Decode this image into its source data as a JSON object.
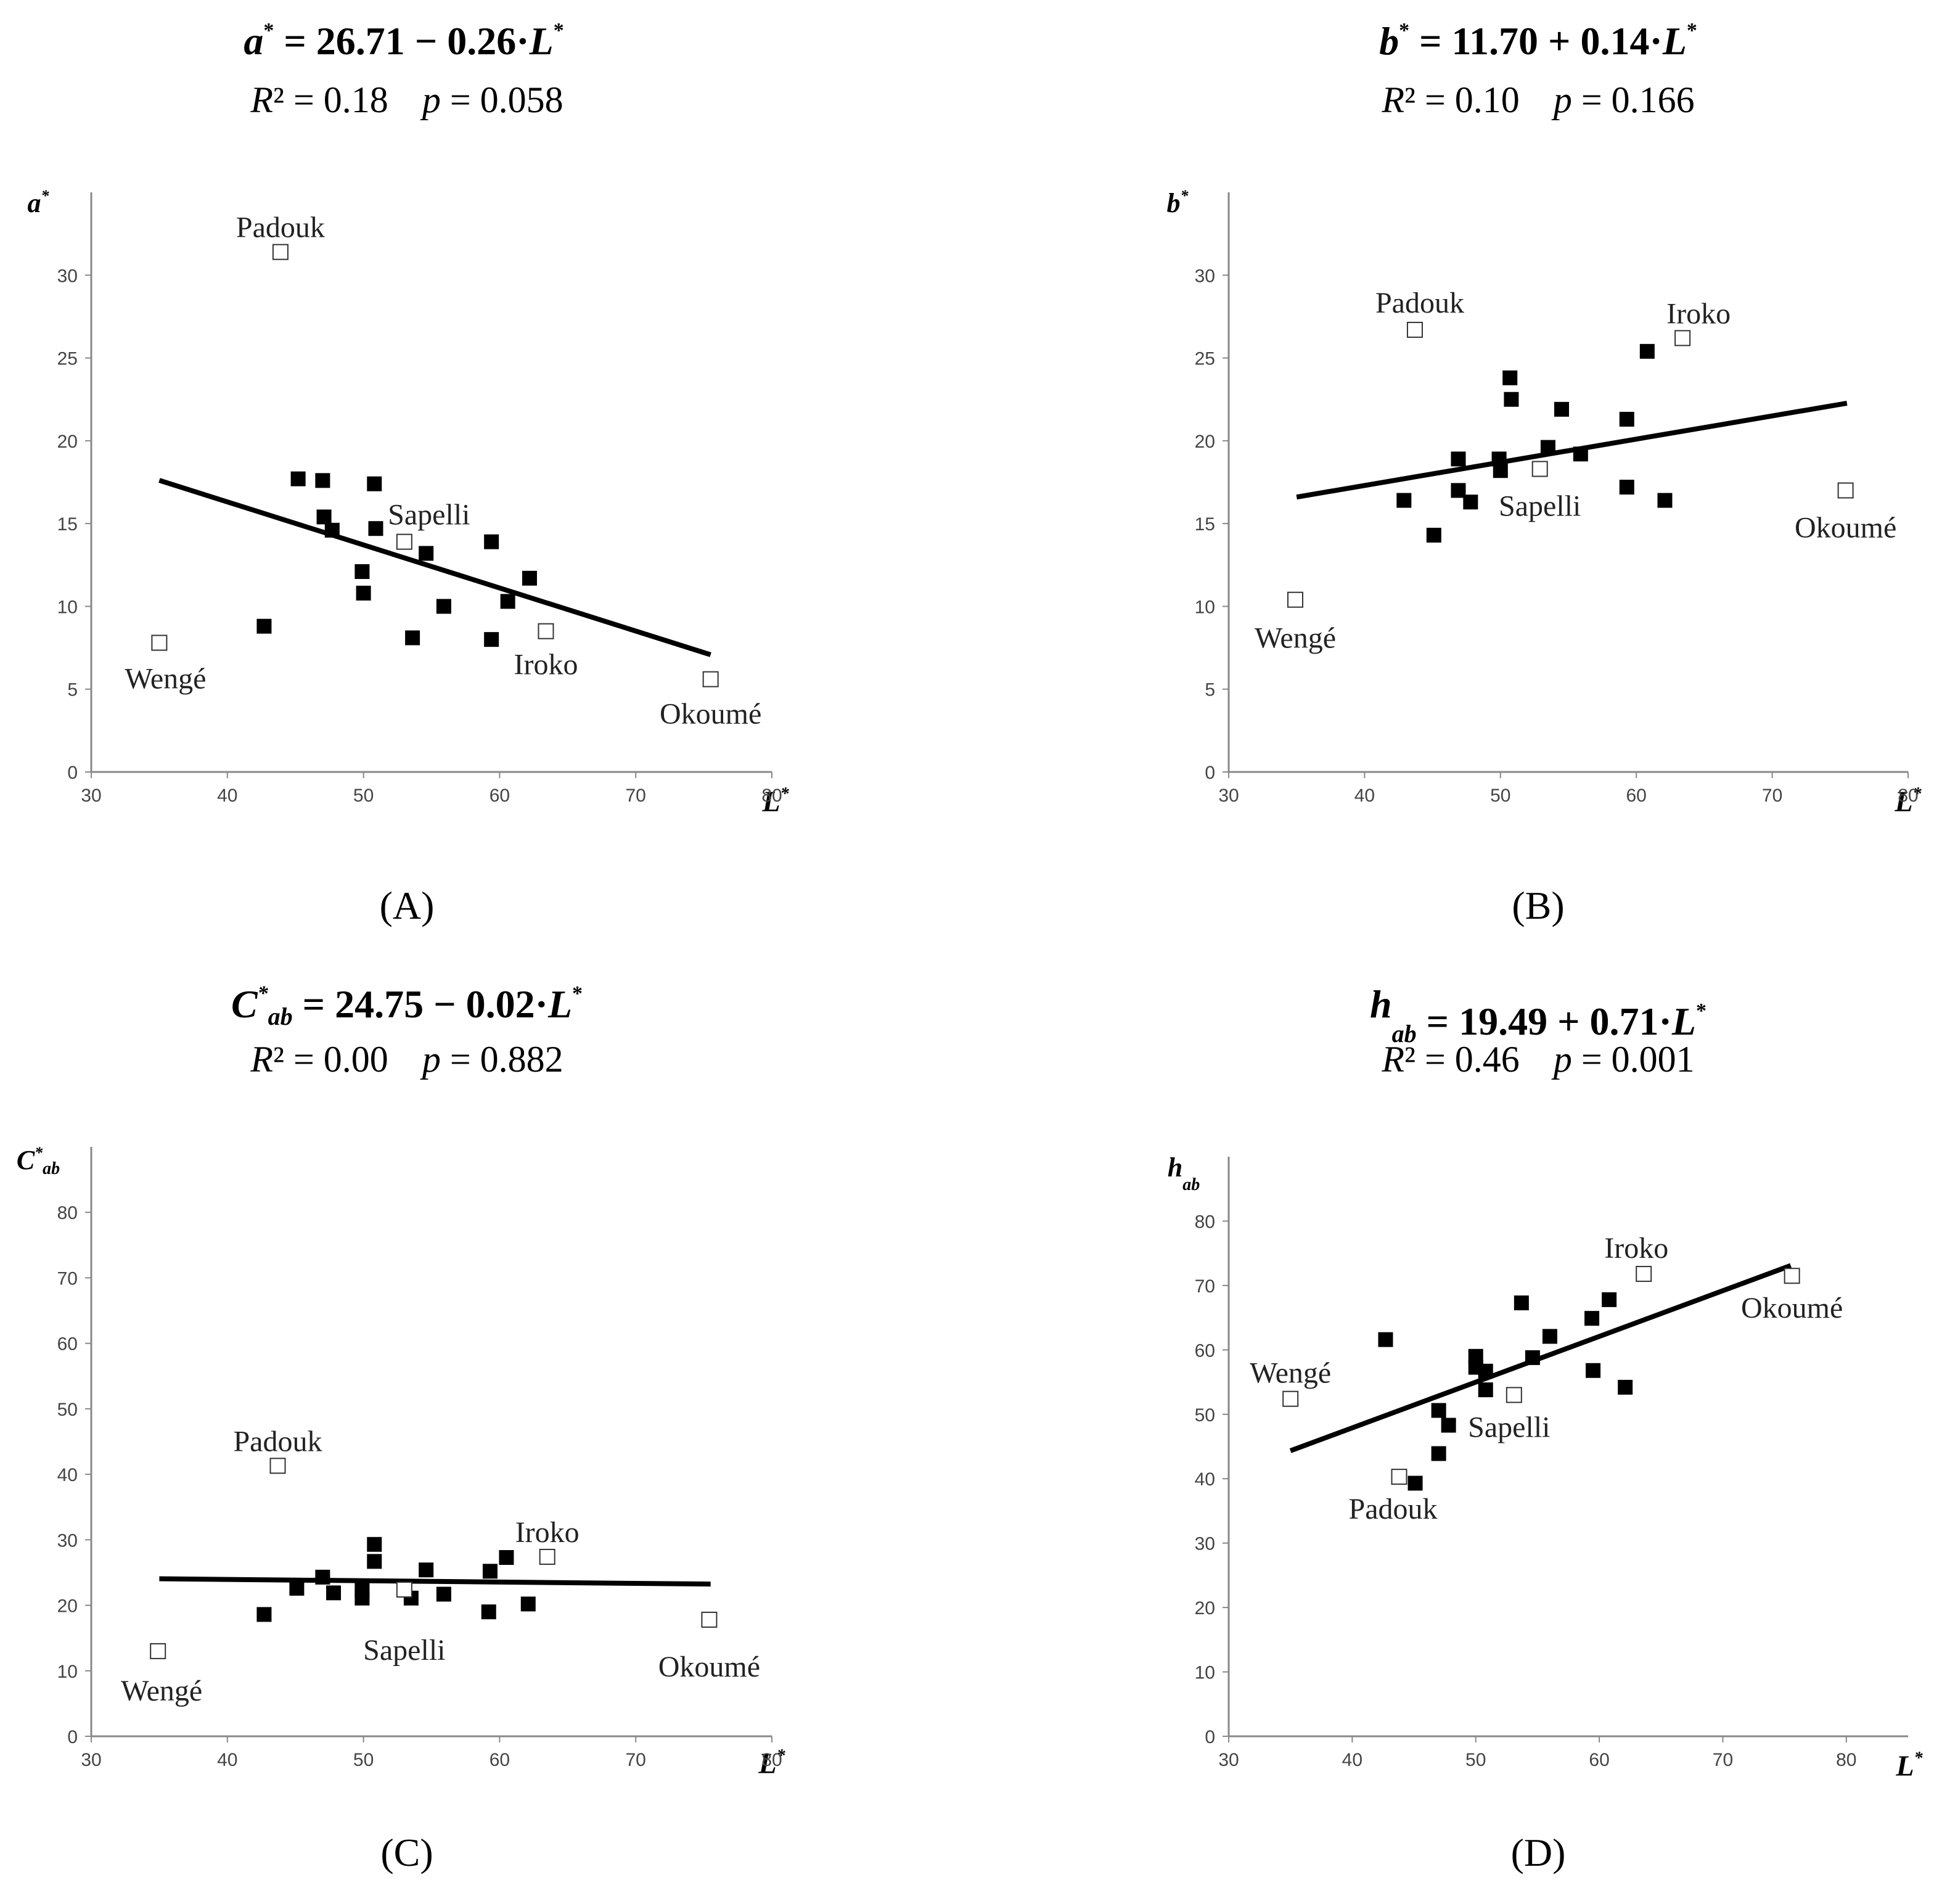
{
  "chart_data": [
    {
      "type": "scatter",
      "id": "A",
      "caption": "(A)",
      "equation": {
        "lhs": "a",
        "lhs_sup": "*",
        "lhs_sub": "",
        "rhs": " = 26.71 − 0.26·",
        "var": "L",
        "var_sup": "*"
      },
      "stats": {
        "r2_label": "R",
        "r2_value": "² = 0.18",
        "p_label": "p",
        "p_value": " = 0.058"
      },
      "ylabel": {
        "main": "a",
        "sup": "*",
        "sub": ""
      },
      "xlabel": {
        "main": "L",
        "sup": "*"
      },
      "xlim": [
        30,
        80
      ],
      "ylim": [
        0,
        35
      ],
      "xticks": [
        30,
        40,
        50,
        60,
        70,
        80
      ],
      "yticks": [
        0,
        5,
        10,
        15,
        20,
        25,
        30
      ],
      "regression": {
        "intercept": 26.71,
        "slope": -0.26,
        "x_range": [
          35,
          75.5
        ]
      },
      "filled_points": [
        {
          "x": 42.7,
          "y": 8.8
        },
        {
          "x": 45.2,
          "y": 17.7
        },
        {
          "x": 47.0,
          "y": 17.6
        },
        {
          "x": 47.1,
          "y": 15.4
        },
        {
          "x": 47.7,
          "y": 14.6
        },
        {
          "x": 49.9,
          "y": 12.1
        },
        {
          "x": 50.0,
          "y": 10.8
        },
        {
          "x": 50.8,
          "y": 17.4
        },
        {
          "x": 50.9,
          "y": 14.7
        },
        {
          "x": 53.6,
          "y": 8.1
        },
        {
          "x": 54.6,
          "y": 13.2
        },
        {
          "x": 55.9,
          "y": 10.0
        },
        {
          "x": 59.4,
          "y": 13.9
        },
        {
          "x": 59.4,
          "y": 8.0
        },
        {
          "x": 60.6,
          "y": 10.3
        },
        {
          "x": 62.2,
          "y": 11.7
        }
      ],
      "open_points": [
        {
          "x": 43.9,
          "y": 31.4,
          "label": "Padouk"
        },
        {
          "x": 53.0,
          "y": 13.9,
          "label": "Sapelli"
        },
        {
          "x": 35.0,
          "y": 7.8,
          "label": "Wengé"
        },
        {
          "x": 63.4,
          "y": 8.5,
          "label": "Iroko"
        },
        {
          "x": 75.5,
          "y": 5.6,
          "label": "Okoumé"
        }
      ]
    },
    {
      "type": "scatter",
      "id": "B",
      "caption": "(B)",
      "equation": {
        "lhs": "b",
        "lhs_sup": "*",
        "lhs_sub": "",
        "rhs": " = 11.70 + 0.14·",
        "var": "L",
        "var_sup": "*"
      },
      "stats": {
        "r2_label": "R",
        "r2_value": "² = 0.10",
        "p_label": "p",
        "p_value": " = 0.166"
      },
      "ylabel": {
        "main": "b",
        "sup": "*",
        "sub": ""
      },
      "xlabel": {
        "main": "L",
        "sup": "*"
      },
      "xlim": [
        30,
        80
      ],
      "ylim": [
        0,
        35
      ],
      "xticks": [
        30,
        40,
        50,
        60,
        70,
        80
      ],
      "yticks": [
        0,
        5,
        10,
        15,
        20,
        25,
        30
      ],
      "regression": {
        "intercept": 11.7,
        "slope": 0.14,
        "x_range": [
          35,
          75.5
        ]
      },
      "filled_points": [
        {
          "x": 42.9,
          "y": 16.4
        },
        {
          "x": 45.1,
          "y": 14.3
        },
        {
          "x": 46.9,
          "y": 18.9
        },
        {
          "x": 46.9,
          "y": 17.0
        },
        {
          "x": 47.8,
          "y": 16.3
        },
        {
          "x": 49.9,
          "y": 18.9
        },
        {
          "x": 50.0,
          "y": 18.2
        },
        {
          "x": 50.7,
          "y": 23.8
        },
        {
          "x": 50.8,
          "y": 22.5
        },
        {
          "x": 53.5,
          "y": 19.6
        },
        {
          "x": 54.5,
          "y": 21.9
        },
        {
          "x": 55.9,
          "y": 19.2
        },
        {
          "x": 59.3,
          "y": 21.3
        },
        {
          "x": 59.3,
          "y": 17.2
        },
        {
          "x": 60.8,
          "y": 25.4
        },
        {
          "x": 62.1,
          "y": 16.4
        }
      ],
      "open_points": [
        {
          "x": 43.7,
          "y": 26.7,
          "label": "Padouk"
        },
        {
          "x": 63.4,
          "y": 26.2,
          "label": "Iroko"
        },
        {
          "x": 52.9,
          "y": 18.3,
          "label": "Sapelli"
        },
        {
          "x": 75.4,
          "y": 17.0,
          "label": "Okoumé"
        },
        {
          "x": 34.9,
          "y": 10.4,
          "label": "Wengé"
        }
      ]
    },
    {
      "type": "scatter",
      "id": "C",
      "caption": "(C)",
      "equation": {
        "lhs": "C",
        "lhs_sup": "*",
        "lhs_sub": "ab",
        "rhs": " = 24.75 − 0.02·",
        "var": "L",
        "var_sup": "*"
      },
      "stats": {
        "r2_label": "R",
        "r2_value": "² = 0.00",
        "p_label": "p",
        "p_value": " = 0.882"
      },
      "ylabel": {
        "main": "C",
        "sup": "*",
        "sub": "ab"
      },
      "xlabel": {
        "main": "L",
        "sup": "*"
      },
      "xlim": [
        30,
        80
      ],
      "ylim": [
        0,
        90
      ],
      "xticks": [
        30,
        40,
        50,
        60,
        70,
        80
      ],
      "yticks": [
        0,
        10,
        20,
        30,
        40,
        50,
        60,
        70,
        80
      ],
      "regression": {
        "intercept": 24.75,
        "slope": -0.02,
        "x_range": [
          35,
          75.5
        ]
      },
      "filled_points": [
        {
          "x": 42.7,
          "y": 18.6
        },
        {
          "x": 45.1,
          "y": 22.6
        },
        {
          "x": 47.0,
          "y": 24.3
        },
        {
          "x": 47.8,
          "y": 21.9
        },
        {
          "x": 49.9,
          "y": 22.3
        },
        {
          "x": 49.9,
          "y": 21.1
        },
        {
          "x": 50.8,
          "y": 29.3
        },
        {
          "x": 50.8,
          "y": 26.7
        },
        {
          "x": 53.5,
          "y": 21.1
        },
        {
          "x": 54.6,
          "y": 25.4
        },
        {
          "x": 55.9,
          "y": 21.7
        },
        {
          "x": 59.3,
          "y": 25.2
        },
        {
          "x": 59.2,
          "y": 19.0
        },
        {
          "x": 60.5,
          "y": 27.3
        },
        {
          "x": 62.1,
          "y": 20.2
        }
      ],
      "open_points": [
        {
          "x": 43.7,
          "y": 41.3,
          "label": "Padouk"
        },
        {
          "x": 63.5,
          "y": 27.4,
          "label": "Iroko"
        },
        {
          "x": 53.0,
          "y": 22.4,
          "label": "Sapelli"
        },
        {
          "x": 75.4,
          "y": 17.8,
          "label": "Okoumé"
        },
        {
          "x": 34.9,
          "y": 13.0,
          "label": "Wengé"
        }
      ]
    },
    {
      "type": "scatter",
      "id": "D",
      "caption": "(D)",
      "equation": {
        "lhs": "h",
        "lhs_sup": "",
        "lhs_sub": "ab",
        "rhs": " = 19.49 + 0.71·",
        "var": "L",
        "var_sup": "*"
      },
      "stats": {
        "r2_label": "R",
        "r2_value": "² = 0.46",
        "p_label": "p",
        "p_value": " = 0.001"
      },
      "ylabel": {
        "main": "h",
        "sup": "",
        "sub": "ab"
      },
      "xlabel": {
        "main": "L",
        "sup": "*"
      },
      "xlim": [
        30,
        85
      ],
      "ylim": [
        0,
        90
      ],
      "xticks": [
        30,
        40,
        50,
        60,
        70,
        80
      ],
      "yticks": [
        0,
        10,
        20,
        30,
        40,
        50,
        60,
        70,
        80
      ],
      "regression": {
        "intercept": 19.49,
        "slope": 0.71,
        "x_range": [
          35,
          75.5
        ]
      },
      "filled_points": [
        {
          "x": 42.7,
          "y": 61.6
        },
        {
          "x": 45.1,
          "y": 39.3
        },
        {
          "x": 47.0,
          "y": 50.6
        },
        {
          "x": 47.0,
          "y": 43.9
        },
        {
          "x": 47.8,
          "y": 48.3
        },
        {
          "x": 50.0,
          "y": 59.0
        },
        {
          "x": 50.0,
          "y": 57.3
        },
        {
          "x": 50.8,
          "y": 56.7
        },
        {
          "x": 50.8,
          "y": 53.8
        },
        {
          "x": 53.7,
          "y": 67.3
        },
        {
          "x": 54.6,
          "y": 58.8
        },
        {
          "x": 56.0,
          "y": 62.1
        },
        {
          "x": 59.4,
          "y": 64.9
        },
        {
          "x": 59.5,
          "y": 56.8
        },
        {
          "x": 60.8,
          "y": 67.8
        },
        {
          "x": 62.1,
          "y": 54.2
        }
      ],
      "open_points": [
        {
          "x": 63.6,
          "y": 71.8,
          "label": "Iroko"
        },
        {
          "x": 75.6,
          "y": 71.5,
          "label": "Okoumé"
        },
        {
          "x": 35.0,
          "y": 52.4,
          "label": "Wengé"
        },
        {
          "x": 53.1,
          "y": 53.0,
          "label": "Sapelli"
        },
        {
          "x": 43.8,
          "y": 40.3,
          "label": "Padouk"
        }
      ]
    }
  ]
}
